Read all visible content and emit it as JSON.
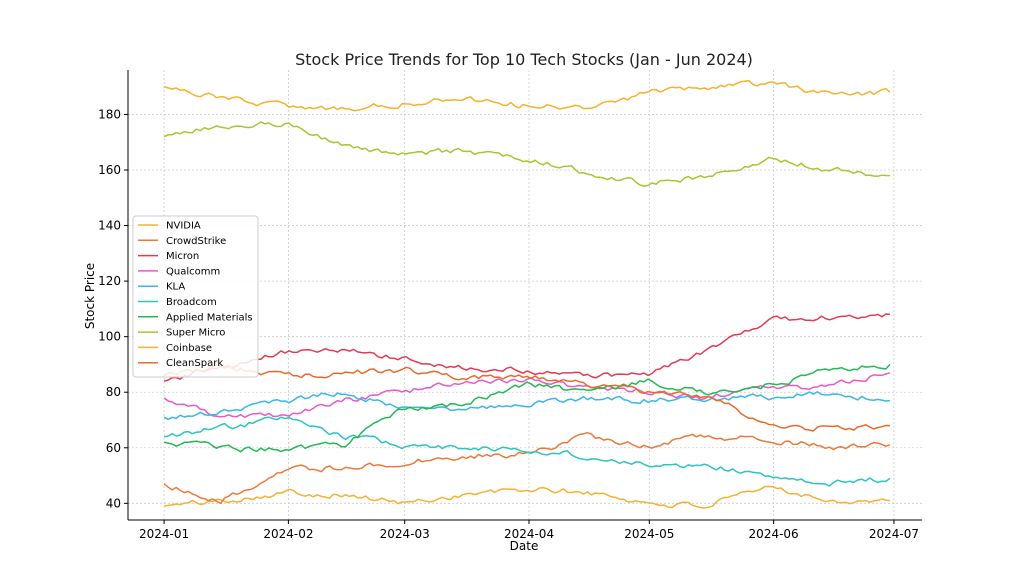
{
  "chart_data": {
    "type": "line",
    "title": "Stock Price Trends for Top 10 Tech Stocks (Jan - Jun 2024)",
    "xlabel": "Date",
    "ylabel": "Stock Price",
    "x_ticks": [
      "2024-01",
      "2024-02",
      "2024-03",
      "2024-04",
      "2024-05",
      "2024-06",
      "2024-07"
    ],
    "y_ticks": [
      40,
      60,
      80,
      100,
      120,
      140,
      160,
      180
    ],
    "xlim": [
      "2023-12-23",
      "2024-07-08"
    ],
    "ylim": [
      34,
      196
    ],
    "grid": true,
    "legend_position": "center-left",
    "x": [
      "2024-01-01",
      "2024-01-15",
      "2024-02-01",
      "2024-02-15",
      "2024-03-01",
      "2024-03-15",
      "2024-04-01",
      "2024-04-15",
      "2024-05-01",
      "2024-05-15",
      "2024-06-01",
      "2024-06-15",
      "2024-06-30"
    ],
    "series": [
      {
        "name": "NVIDIA",
        "color": "#F2B233",
        "values": [
          39,
          41,
          44,
          43,
          40,
          43,
          45,
          44,
          40,
          39,
          46,
          41,
          41
        ]
      },
      {
        "name": "CrowdStrike",
        "color": "#EA7A3A",
        "values": [
          47,
          41,
          52,
          53,
          55,
          57,
          58,
          64,
          61,
          64,
          63,
          60,
          61
        ]
      },
      {
        "name": "Micron",
        "color": "#E23B55",
        "values": [
          84,
          89,
          95,
          95,
          92,
          89,
          88,
          86,
          86,
          95,
          106,
          107,
          108
        ]
      },
      {
        "name": "Qualcomm",
        "color": "#E55BC9",
        "values": [
          78,
          71,
          72,
          77,
          80,
          84,
          84,
          82,
          80,
          78,
          82,
          82,
          87
        ]
      },
      {
        "name": "KLA",
        "color": "#39B7E8",
        "values": [
          71,
          73,
          77,
          80,
          74,
          73,
          76,
          78,
          77,
          78,
          78,
          80,
          77
        ]
      },
      {
        "name": "Broadcom",
        "color": "#2CC5BF",
        "values": [
          64,
          67,
          71,
          64,
          61,
          60,
          59,
          57,
          54,
          54,
          49,
          47,
          49
        ]
      },
      {
        "name": "Applied Materials",
        "color": "#25B854",
        "values": [
          62,
          60,
          59,
          61,
          74,
          76,
          83,
          80,
          84,
          80,
          83,
          88,
          90
        ]
      },
      {
        "name": "Super Micro",
        "color": "#A5C72F",
        "values": [
          172,
          176,
          177,
          168,
          166,
          167,
          164,
          159,
          155,
          158,
          164,
          160,
          158
        ]
      },
      {
        "name": "Coinbase",
        "color": "#F4B32B",
        "values": [
          190,
          186,
          183,
          182,
          184,
          186,
          183,
          182,
          188,
          190,
          191,
          187,
          188
        ]
      },
      {
        "name": "CleanSpark",
        "color": "#E66B2C",
        "values": [
          86,
          89,
          86,
          87,
          88,
          85,
          86,
          83,
          80,
          79,
          68,
          67,
          68
        ]
      }
    ]
  }
}
